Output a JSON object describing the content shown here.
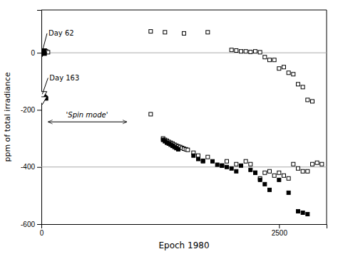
{
  "chart_data": {
    "type": "scatter",
    "title": "",
    "xlabel": "Epoch 1980",
    "ylabel": "ppm of total irradiance",
    "xlim": [
      0,
      3000
    ],
    "ylim": [
      -600,
      150
    ],
    "xticks": [
      0,
      2500
    ],
    "yticks": [
      -600,
      -400,
      -200,
      0
    ],
    "grid": false,
    "series": [
      {
        "marker": "square-open",
        "color": "#000000",
        "x": [
          50,
          70,
          1150,
          1300,
          1500,
          1750,
          2000,
          2050,
          2100,
          2150,
          2200,
          2250,
          2300,
          2350,
          2400,
          2450,
          2500,
          2550,
          2600,
          2650,
          2700,
          2750,
          2800,
          2850
        ],
        "values": [
          5,
          2,
          75,
          72,
          68,
          72,
          10,
          8,
          5,
          5,
          3,
          5,
          2,
          -15,
          -25,
          -25,
          -55,
          -50,
          -70,
          -75,
          -110,
          -120,
          -165,
          -170
        ]
      },
      {
        "marker": "square",
        "color": "#000000",
        "x": [
          10,
          20,
          25,
          30,
          35
        ],
        "values": [
          5,
          2,
          0,
          -2,
          -3
        ]
      },
      {
        "marker": "square-open",
        "color": "#000000",
        "x": [
          1150,
          1280,
          1300,
          1320,
          1340,
          1360,
          1380,
          1400,
          1420,
          1440,
          1460,
          1480,
          1500,
          1520,
          1540,
          1600,
          1650,
          1700,
          1750,
          1900,
          1950,
          2050,
          2150,
          2200,
          2250,
          2300,
          2350,
          2400,
          2450,
          2500,
          2550,
          2600,
          2650,
          2700,
          2750,
          2800,
          2850,
          2900,
          2950
        ],
        "values": [
          -215,
          -300,
          -305,
          -308,
          -312,
          -315,
          -318,
          -322,
          -325,
          -328,
          -330,
          -333,
          -336,
          -338,
          -340,
          -350,
          -360,
          -380,
          -365,
          -395,
          -380,
          -390,
          -380,
          -390,
          -420,
          -440,
          -420,
          -415,
          -430,
          -420,
          -430,
          -440,
          -390,
          -405,
          -415,
          -415,
          -390,
          -385,
          -390
        ]
      },
      {
        "marker": "square",
        "color": "#000000",
        "x": [
          10,
          15,
          20,
          25,
          30,
          35,
          40,
          45,
          50,
          1280,
          1300,
          1320,
          1340,
          1360,
          1380,
          1400,
          1420,
          1440,
          1600,
          1650,
          1700,
          1800,
          1850,
          1900,
          1950,
          2000,
          2050,
          2100,
          2200,
          2250,
          2300,
          2350,
          2400,
          2500,
          2600,
          2700,
          2750,
          2800
        ],
        "values": [
          -145,
          -148,
          -150,
          -152,
          -155,
          -155,
          -158,
          -158,
          -160,
          -305,
          -310,
          -315,
          -318,
          -322,
          -326,
          -330,
          -334,
          -338,
          -360,
          -372,
          -378,
          -380,
          -392,
          -395,
          -400,
          -405,
          -415,
          -395,
          -410,
          -420,
          -445,
          -460,
          -480,
          -445,
          -490,
          -555,
          -560,
          -565
        ]
      }
    ],
    "reference_lines": [
      {
        "y": 0,
        "color": "#aaaaaa"
      },
      {
        "y": -400,
        "color": "#aaaaaa"
      }
    ],
    "annotations": [
      {
        "text": "Day 62",
        "text_x": 60,
        "text_y": 68,
        "x": [
          10
        ],
        "y": [
          5
        ],
        "marker": "triangle-down",
        "color": "#000000"
      },
      {
        "text": "Day 163",
        "text_x": 70,
        "text_y": -88,
        "x": [
          10,
          10
        ],
        "y": [
          -145,
          -163
        ],
        "marker": "triangle-down-open",
        "color": "#000000"
      },
      {
        "text": "'Spin mode'",
        "text_x": 480,
        "text_y": -230,
        "arrow": {
          "x1": 70,
          "x2": 900,
          "y": -242
        },
        "color": "#000000"
      }
    ]
  }
}
